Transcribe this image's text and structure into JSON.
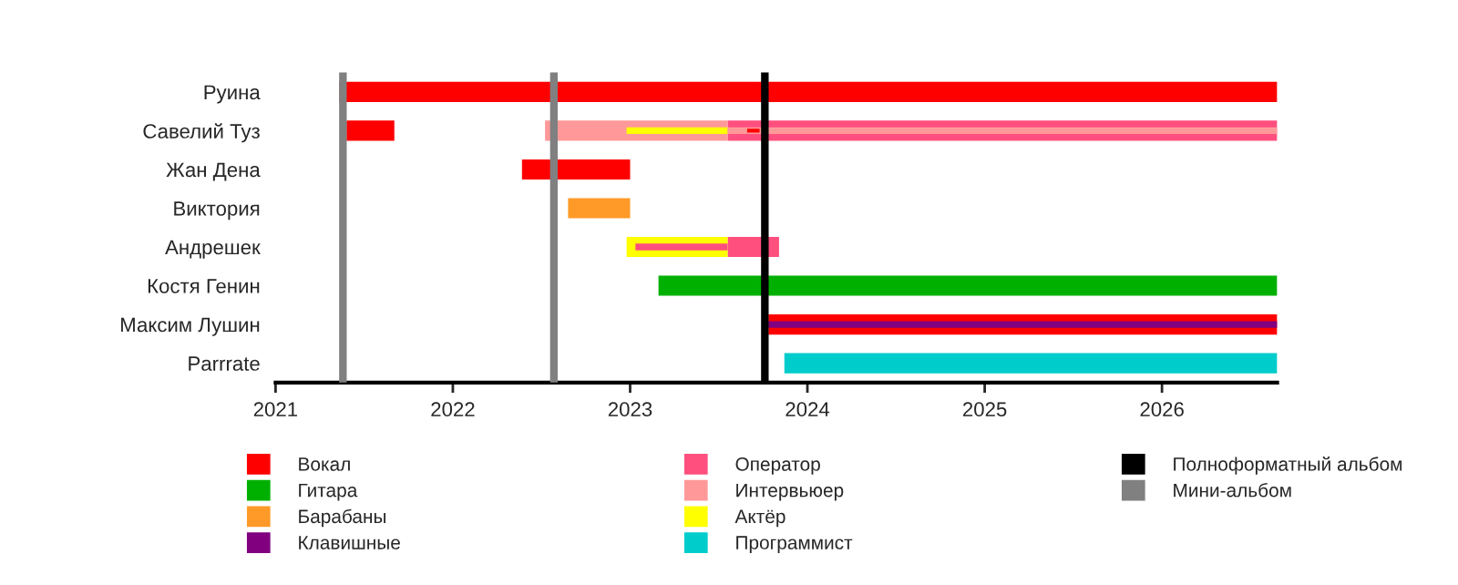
{
  "chart_data": {
    "type": "bar",
    "orientation": "horizontal",
    "categories": [
      "Руина",
      "Савелий Туз",
      "Жан Дена",
      "Виктория",
      "Андрешек",
      "Костя Генин",
      "Максим Лушин",
      "Parrrate"
    ],
    "series": [
      {
        "name": "Вокал",
        "color": "#ff0000",
        "base": [
          2021.36,
          2021.4,
          2022.39,
          null,
          null,
          null,
          2023.78,
          null
        ],
        "values": [
          5.29,
          0.27,
          0.61,
          null,
          null,
          null,
          2.87,
          null
        ]
      },
      {
        "name": "Гитара",
        "color": "#00b000",
        "base": [
          null,
          null,
          null,
          null,
          null,
          2023.16,
          null,
          null
        ],
        "values": [
          null,
          null,
          null,
          null,
          null,
          3.49,
          null,
          null
        ]
      },
      {
        "name": "Барабаны",
        "color": "#ff9a28",
        "base": [
          null,
          null,
          null,
          2022.65,
          null,
          null,
          null,
          null
        ],
        "values": [
          null,
          null,
          null,
          0.35,
          null,
          null,
          null,
          null
        ]
      },
      {
        "name": "Клавишные",
        "color": "#800080",
        "base": [
          null,
          null,
          null,
          null,
          null,
          null,
          2023.78,
          null
        ],
        "values": [
          null,
          null,
          null,
          null,
          null,
          null,
          2.87,
          null
        ]
      },
      {
        "name": "Оператор",
        "color": "#ff4f7f",
        "base": [
          null,
          2023.55,
          null,
          null,
          2023.55,
          null,
          null,
          null
        ],
        "values": [
          null,
          3.1,
          null,
          null,
          0.29,
          null,
          null,
          null
        ]
      },
      {
        "name": "Интервьюер",
        "color": "#ff9999",
        "base": [
          null,
          2022.52,
          null,
          null,
          null,
          null,
          null,
          null
        ],
        "values": [
          null,
          1.03,
          null,
          null,
          null,
          null,
          null,
          null
        ]
      },
      {
        "name": "Актёр",
        "color": "#ffff00",
        "base": [
          null,
          2022.98,
          null,
          null,
          2022.98,
          null,
          null,
          null
        ],
        "values": [
          null,
          0.57,
          null,
          null,
          0.57,
          null,
          null,
          null
        ]
      },
      {
        "name": "Программист",
        "color": "#00cccc",
        "base": [
          null,
          null,
          null,
          null,
          null,
          null,
          null,
          2023.87
        ],
        "values": [
          null,
          null,
          null,
          null,
          null,
          null,
          null,
          2.78
        ]
      },
      {
        "color": "#ff9999",
        "base": [
          null,
          2023.55,
          null,
          null,
          null,
          null,
          null,
          null
        ],
        "values": [
          null,
          3.1,
          null,
          null,
          null,
          null,
          null,
          null
        ]
      },
      {
        "color": "#ff4f7f",
        "base": [
          null,
          null,
          null,
          null,
          2023.03,
          null,
          null,
          null
        ],
        "values": [
          null,
          null,
          null,
          null,
          0.52,
          null,
          null,
          null
        ]
      },
      {
        "color": "#ff0000",
        "base": [
          null,
          2023.66,
          null,
          null,
          null,
          null,
          null,
          null
        ],
        "values": [
          null,
          0.07,
          null,
          null,
          null,
          null,
          null,
          null
        ]
      }
    ],
    "ref_lines": [
      {
        "axis": "x",
        "value": 2023.76,
        "label": "Полноформатный альбом",
        "color": "#000000"
      },
      {
        "axis": "x",
        "value": 2021.38,
        "label": "Мини-альбом",
        "color": "#808080"
      },
      {
        "axis": "x",
        "value": 2022.57,
        "label": null,
        "color": "#808080"
      }
    ],
    "xlim": [
      2021,
      2026.65
    ],
    "xticks": [
      2021,
      2022,
      2023,
      2024,
      2025,
      2026
    ],
    "legend": "bottom"
  }
}
